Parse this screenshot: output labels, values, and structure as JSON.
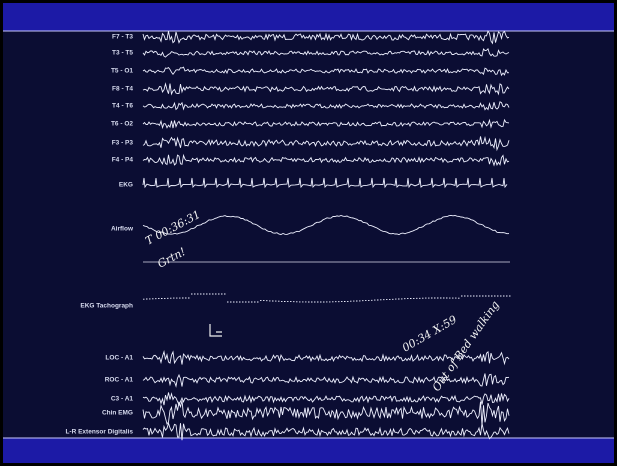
{
  "channels": [
    "F7 - T3",
    "T3 - T5",
    "T5 - O1",
    "F8 - T4",
    "T4 - T6",
    "T6 - O2",
    "F3 - P3",
    "F4 - P4",
    "EKG",
    "Airflow",
    "EKG Tachograph",
    "LOC - A1",
    "ROC - A1",
    "C3 - A1",
    "Chin EMG",
    "L-R Extensor Digitalis"
  ],
  "annotations": [
    "T 00:36:31",
    "Grtn!",
    "00:34 X:59",
    "Out of Bed walking"
  ]
}
